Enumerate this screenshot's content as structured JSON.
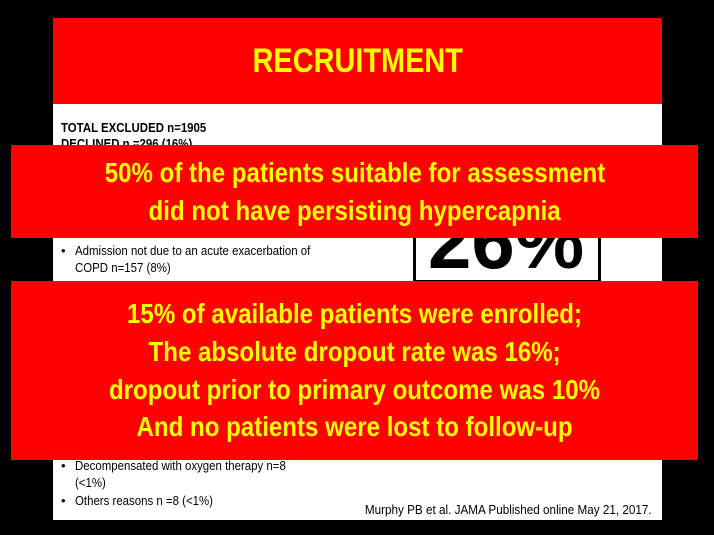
{
  "slide": {
    "title": "RECRUITMENT",
    "total_excluded": "TOTAL EXCLUDED n=1905",
    "declined": "DECLINED n =296 (16%)",
    "bullets": [
      "Admission not due to an acute exacerbation of",
      "COPD n=157 (8%)",
      "Decompensated with oxygen therapy n=8",
      "(<1%)",
      "Others reasons  n =8 (<1%)"
    ],
    "big_percent": "26%",
    "citation": "Murphy PB et al. JAMA Published online May 21, 2017."
  },
  "banner_top": {
    "lines": [
      "50% of the patients suitable for assessment",
      "did not have persisting hypercapnia"
    ]
  },
  "banner_bottom": {
    "lines": [
      "15% of available patients were enrolled;",
      "The absolute dropout rate was 16%;",
      "dropout prior to primary outcome was 10%",
      "And no patients were lost to follow-up"
    ]
  },
  "colors": {
    "banner_red": "#fe0000",
    "banner_text": "#ffff00",
    "background": "#000000"
  }
}
